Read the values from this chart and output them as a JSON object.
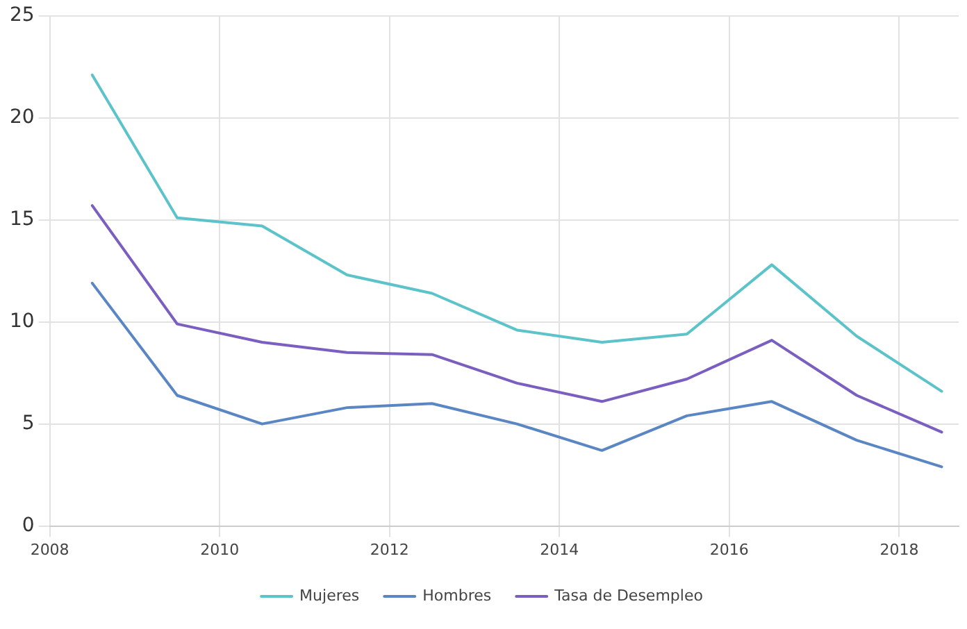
{
  "chart_data": {
    "type": "line",
    "x": [
      2008.5,
      2009.5,
      2010.5,
      2011.5,
      2012.5,
      2013.5,
      2014.5,
      2015.5,
      2016.5,
      2017.5,
      2018.5
    ],
    "series": [
      {
        "name": "Mujeres",
        "color": "#5bc3c9",
        "values": [
          22.1,
          15.1,
          14.7,
          12.3,
          11.4,
          9.6,
          9.0,
          9.4,
          12.8,
          9.3,
          6.6
        ]
      },
      {
        "name": "Hombres",
        "color": "#5b86c4",
        "values": [
          11.9,
          6.4,
          5.0,
          5.8,
          6.0,
          5.0,
          3.7,
          5.4,
          6.1,
          4.2,
          2.9
        ]
      },
      {
        "name": "Tasa de Desempleo",
        "color": "#7a5fc0",
        "values": [
          15.7,
          9.9,
          9.0,
          8.5,
          8.4,
          7.0,
          6.1,
          7.2,
          9.1,
          6.4,
          4.6
        ]
      }
    ],
    "xlim": [
      2008,
      2018.7
    ],
    "xticks": [
      2008,
      2010,
      2012,
      2014,
      2016,
      2018
    ],
    "ylim": [
      0,
      25
    ],
    "yticks": [
      0,
      5,
      10,
      15,
      20,
      25
    ],
    "grid": true,
    "legend": "bottom",
    "marker": "none",
    "line_style": "solid"
  }
}
